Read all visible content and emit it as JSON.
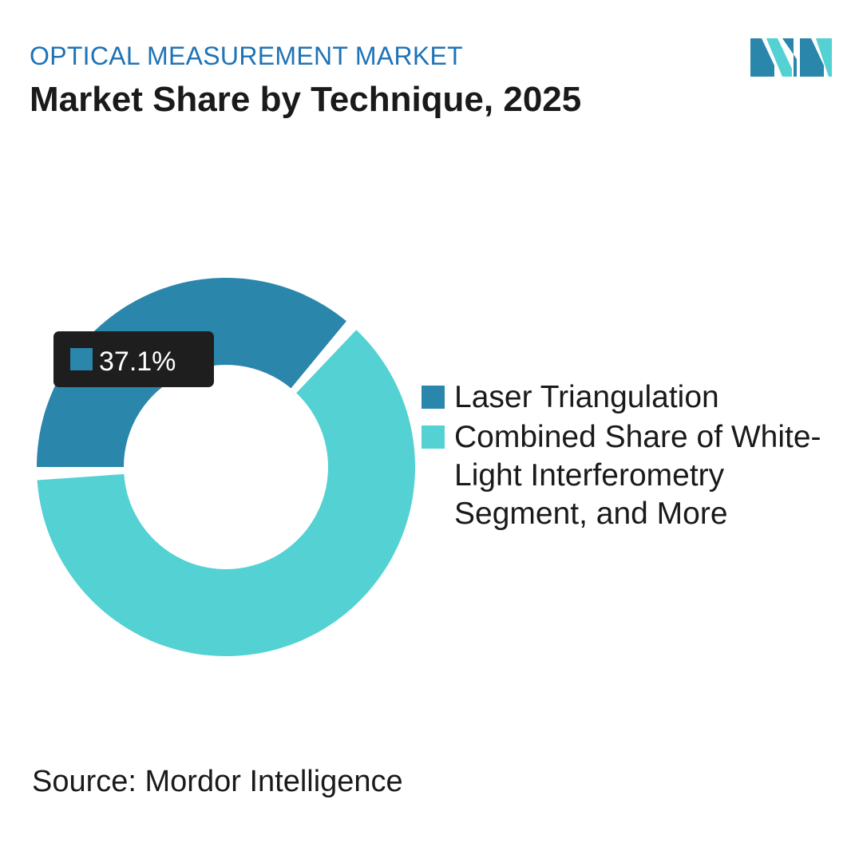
{
  "header": {
    "eyebrow": "OPTICAL MEASUREMENT MARKET",
    "title": "Market Share by Technique, 2025"
  },
  "colors": {
    "eyebrow": "#1f73b7",
    "laser_triangulation": "#2a86ab",
    "combined_share": "#53d1d3",
    "tooltip_bg": "#1e1e1e",
    "logo_dark": "#2a86ab",
    "logo_light": "#53d1d3"
  },
  "logo": {
    "icon": "mordor-intelligence-logo-icon"
  },
  "chart_data": {
    "type": "pie",
    "style": "donut",
    "categories": [
      "Laser Triangulation",
      "Combined Share of White-Light Interferometry Segment, and More"
    ],
    "values": [
      37.1,
      62.9
    ],
    "unit": "%",
    "annotations": [
      {
        "category": "Laser Triangulation",
        "text": "37.1%"
      }
    ],
    "legend_position": "right"
  },
  "footer": {
    "source": "Source: Mordor Intelligence"
  }
}
